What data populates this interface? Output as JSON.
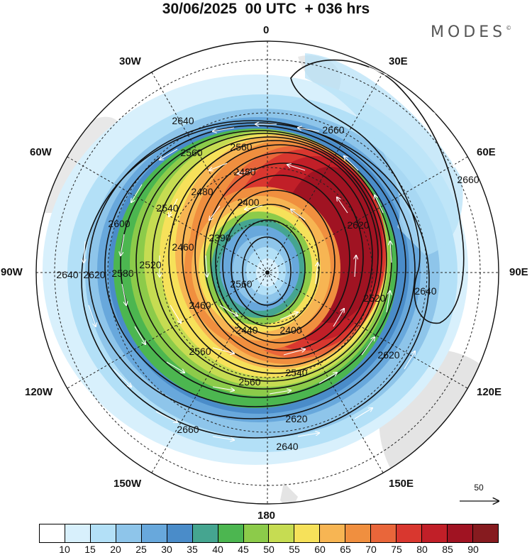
{
  "header": {
    "title": "30/06/2025  00 UTC  + 036 hrs",
    "brand": "MODES",
    "brand_mark": "©"
  },
  "map": {
    "projection": "south-polar-stereographic",
    "longitude_labels": {
      "top": "0",
      "top_right": "30E",
      "right_upper": "60E",
      "right": "90E",
      "right_lower": "120E",
      "bottom_right": "150E",
      "bottom": "180",
      "bottom_left": "150W",
      "left_lower": "120W",
      "left": "90W",
      "left_upper": "60W",
      "top_left": "30W"
    },
    "contour_labels": [
      "2640",
      "2560",
      "2560",
      "2480",
      "2480",
      "2540",
      "2400",
      "2600",
      "2620",
      "2390",
      "2460",
      "2520",
      "2580",
      "2640",
      "2620",
      "2560",
      "2520",
      "2460",
      "2440",
      "2400",
      "2560",
      "2540",
      "2560",
      "2620",
      "2640",
      "2660",
      "2660",
      "2660",
      "2640",
      "2620"
    ],
    "wind_scale_label": "50"
  },
  "colorbar": {
    "colors": [
      "#ffffff",
      "#d8f0fc",
      "#b3e0f7",
      "#8ec5ea",
      "#68a8dc",
      "#4a8cc9",
      "#45a590",
      "#4cb650",
      "#8ccb4a",
      "#c6dc52",
      "#f6e15a",
      "#f7b553",
      "#f08f3f",
      "#e9663a",
      "#d9372f",
      "#c11f28",
      "#a01322",
      "#861b1f"
    ],
    "labels": [
      "10",
      "15",
      "20",
      "25",
      "30",
      "35",
      "40",
      "45",
      "50",
      "55",
      "60",
      "65",
      "70",
      "75",
      "80",
      "85",
      "90"
    ]
  }
}
